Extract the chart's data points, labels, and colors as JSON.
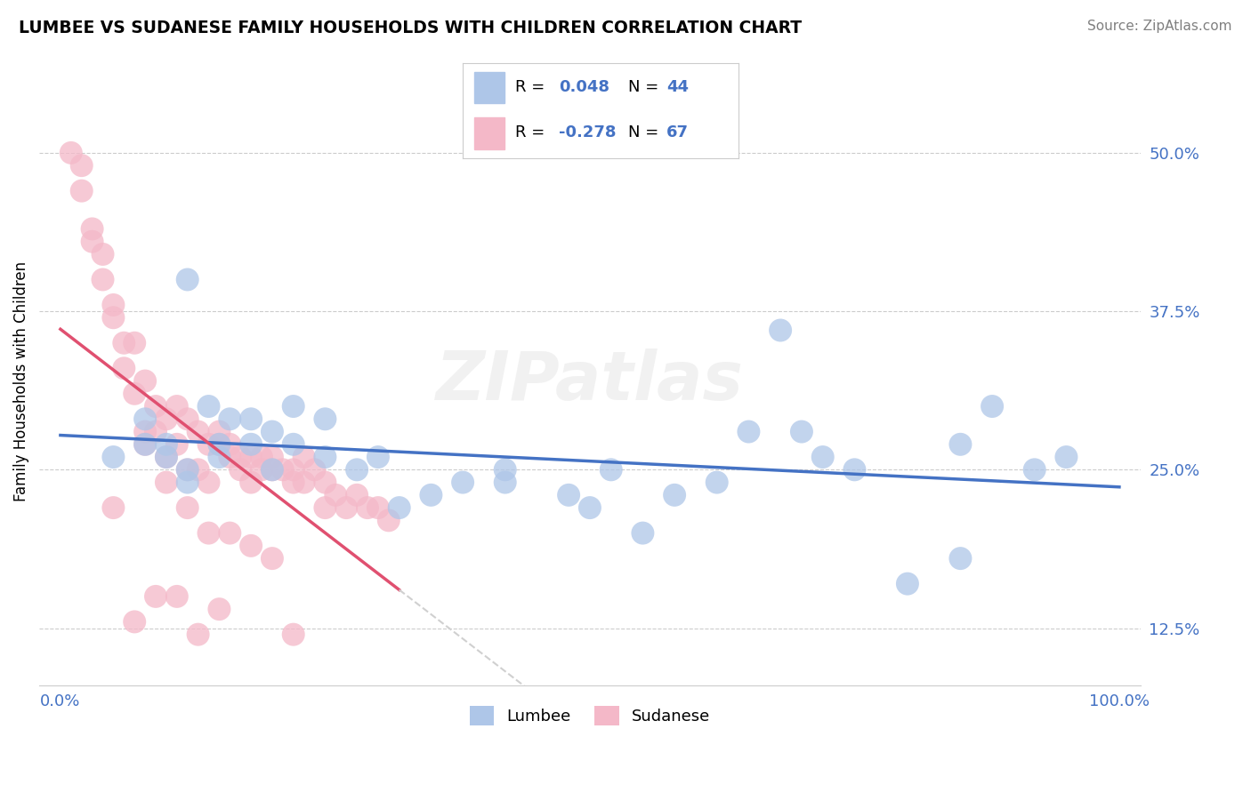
{
  "title": "LUMBEE VS SUDANESE FAMILY HOUSEHOLDS WITH CHILDREN CORRELATION CHART",
  "source_text": "Source: ZipAtlas.com",
  "ylabel": "Family Households with Children",
  "xlabel": "",
  "xlim": [
    -0.02,
    1.02
  ],
  "ylim": [
    0.08,
    0.56
  ],
  "yticks": [
    0.125,
    0.25,
    0.375,
    0.5
  ],
  "ytick_labels": [
    "12.5%",
    "25.0%",
    "37.5%",
    "50.0%"
  ],
  "xtick_positions": [
    0.0,
    1.0
  ],
  "xtick_labels": [
    "0.0%",
    "100.0%"
  ],
  "background_color": "#ffffff",
  "grid_color": "#cccccc",
  "lumbee_color": "#aec6e8",
  "sudanese_color": "#f4b8c8",
  "lumbee_line_color": "#4472c4",
  "sudanese_line_color": "#e05070",
  "lumbee_R": 0.048,
  "lumbee_N": 44,
  "sudanese_R": -0.278,
  "sudanese_N": 67,
  "lumbee_scatter_x": [
    0.05,
    0.12,
    0.08,
    0.1,
    0.14,
    0.16,
    0.15,
    0.2,
    0.18,
    0.12,
    0.22,
    0.25,
    0.1,
    0.08,
    0.12,
    0.15,
    0.18,
    0.2,
    0.22,
    0.25,
    0.28,
    0.32,
    0.35,
    0.38,
    0.42,
    0.48,
    0.52,
    0.55,
    0.62,
    0.65,
    0.58,
    0.7,
    0.72,
    0.75,
    0.8,
    0.85,
    0.88,
    0.92,
    0.85,
    0.95,
    0.68,
    0.5,
    0.42,
    0.3
  ],
  "lumbee_scatter_y": [
    0.26,
    0.4,
    0.29,
    0.27,
    0.3,
    0.29,
    0.27,
    0.28,
    0.29,
    0.24,
    0.3,
    0.29,
    0.26,
    0.27,
    0.25,
    0.26,
    0.27,
    0.25,
    0.27,
    0.26,
    0.25,
    0.22,
    0.23,
    0.24,
    0.25,
    0.23,
    0.25,
    0.2,
    0.24,
    0.28,
    0.23,
    0.28,
    0.26,
    0.25,
    0.16,
    0.27,
    0.3,
    0.25,
    0.18,
    0.26,
    0.36,
    0.22,
    0.24,
    0.26
  ],
  "sudanese_scatter_x": [
    0.01,
    0.02,
    0.02,
    0.03,
    0.03,
    0.04,
    0.04,
    0.05,
    0.05,
    0.06,
    0.06,
    0.07,
    0.07,
    0.08,
    0.08,
    0.09,
    0.09,
    0.1,
    0.1,
    0.11,
    0.11,
    0.12,
    0.12,
    0.13,
    0.13,
    0.14,
    0.14,
    0.15,
    0.15,
    0.16,
    0.16,
    0.17,
    0.17,
    0.18,
    0.18,
    0.19,
    0.19,
    0.2,
    0.2,
    0.21,
    0.22,
    0.22,
    0.23,
    0.23,
    0.24,
    0.25,
    0.25,
    0.26,
    0.27,
    0.28,
    0.29,
    0.3,
    0.31,
    0.05,
    0.08,
    0.1,
    0.12,
    0.14,
    0.16,
    0.18,
    0.2,
    0.11,
    0.09,
    0.07,
    0.15,
    0.13,
    0.22
  ],
  "sudanese_scatter_y": [
    0.5,
    0.47,
    0.49,
    0.43,
    0.44,
    0.4,
    0.42,
    0.38,
    0.37,
    0.35,
    0.33,
    0.35,
    0.31,
    0.32,
    0.28,
    0.3,
    0.28,
    0.29,
    0.26,
    0.3,
    0.27,
    0.29,
    0.25,
    0.28,
    0.25,
    0.27,
    0.24,
    0.27,
    0.28,
    0.27,
    0.26,
    0.26,
    0.25,
    0.26,
    0.24,
    0.26,
    0.25,
    0.25,
    0.26,
    0.25,
    0.24,
    0.25,
    0.24,
    0.26,
    0.25,
    0.24,
    0.22,
    0.23,
    0.22,
    0.23,
    0.22,
    0.22,
    0.21,
    0.22,
    0.27,
    0.24,
    0.22,
    0.2,
    0.2,
    0.19,
    0.18,
    0.15,
    0.15,
    0.13,
    0.14,
    0.12,
    0.12
  ],
  "watermark": "ZIPatlas",
  "legend_box_lumbee_color": "#aec6e8",
  "legend_box_sudanese_color": "#f4b8c8",
  "legend_text_color": "#4472c4",
  "tick_color": "#4472c4"
}
